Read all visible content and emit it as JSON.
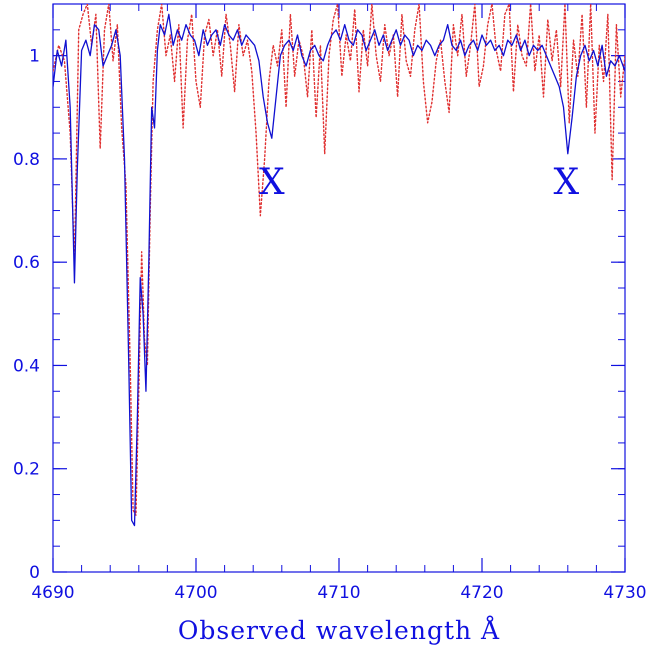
{
  "chart_data": {
    "type": "line",
    "title": "",
    "xlabel": "Observed wavelength Å",
    "ylabel": "",
    "xlim": [
      4690,
      4730
    ],
    "ylim": [
      0,
      1.1
    ],
    "x_ticks": [
      {
        "value": 4690,
        "label": "4690"
      },
      {
        "value": 4700,
        "label": "4700"
      },
      {
        "value": 4710,
        "label": "4710"
      },
      {
        "value": 4720,
        "label": "4720"
      },
      {
        "value": 4730,
        "label": "4730"
      }
    ],
    "y_ticks": [
      {
        "value": 0,
        "label": "0"
      },
      {
        "value": 0.2,
        "label": "0.2"
      },
      {
        "value": 0.4,
        "label": "0.4"
      },
      {
        "value": 0.6,
        "label": "0.6"
      },
      {
        "value": 0.8,
        "label": "0.8"
      },
      {
        "value": 1,
        "label": "1"
      }
    ],
    "grid": false,
    "annotations": [
      {
        "text": "X",
        "x": 4705.3,
        "y": 0.755
      },
      {
        "text": "X",
        "x": 4725.9,
        "y": 0.755
      }
    ],
    "series": [
      {
        "style": "solid",
        "color": "#1010d0",
        "x": [
          4690.0,
          4690.3,
          4690.6,
          4690.9,
          4691.2,
          4691.5,
          4691.7,
          4692.0,
          4692.3,
          4692.6,
          4692.9,
          4693.2,
          4693.5,
          4693.8,
          4694.1,
          4694.4,
          4694.7,
          4695.0,
          4695.3,
          4695.5,
          4695.7,
          4695.9,
          4696.1,
          4696.3,
          4696.5,
          4696.7,
          4696.9,
          4697.1,
          4697.3,
          4697.5,
          4697.8,
          4698.1,
          4698.4,
          4698.7,
          4699.0,
          4699.3,
          4699.6,
          4699.9,
          4700.2,
          4700.5,
          4700.8,
          4701.1,
          4701.4,
          4701.7,
          4702.0,
          4702.3,
          4702.6,
          4702.9,
          4703.2,
          4703.5,
          4703.8,
          4704.1,
          4704.4,
          4704.7,
          4705.0,
          4705.3,
          4705.6,
          4705.9,
          4706.2,
          4706.5,
          4706.8,
          4707.1,
          4707.4,
          4707.7,
          4708.0,
          4708.3,
          4708.6,
          4708.9,
          4709.2,
          4709.5,
          4709.8,
          4710.1,
          4710.4,
          4710.7,
          4711.0,
          4711.3,
          4711.6,
          4711.9,
          4712.2,
          4712.5,
          4712.8,
          4713.1,
          4713.4,
          4713.7,
          4714.0,
          4714.3,
          4714.6,
          4714.9,
          4715.2,
          4715.5,
          4715.8,
          4716.1,
          4716.4,
          4716.7,
          4717.0,
          4717.3,
          4717.6,
          4717.9,
          4718.2,
          4718.5,
          4718.8,
          4719.1,
          4719.4,
          4719.7,
          4720.0,
          4720.3,
          4720.6,
          4720.9,
          4721.2,
          4721.5,
          4721.8,
          4722.1,
          4722.4,
          4722.7,
          4723.0,
          4723.3,
          4723.6,
          4723.9,
          4724.2,
          4724.5,
          4724.8,
          4725.1,
          4725.4,
          4725.7,
          4726.0,
          4726.3,
          4726.6,
          4726.9,
          4727.2,
          4727.5,
          4727.8,
          4728.1,
          4728.4,
          4728.7,
          4729.0,
          4729.3,
          4729.6,
          4730.0
        ],
        "y": [
          0.94,
          1.01,
          0.98,
          1.03,
          0.9,
          0.56,
          0.78,
          1.01,
          1.03,
          1.0,
          1.06,
          1.05,
          0.98,
          1.0,
          1.02,
          1.05,
          1.0,
          0.8,
          0.4,
          0.1,
          0.09,
          0.3,
          0.57,
          0.5,
          0.35,
          0.6,
          0.9,
          0.86,
          1.01,
          1.06,
          1.04,
          1.08,
          1.02,
          1.05,
          1.03,
          1.06,
          1.04,
          1.03,
          1.0,
          1.05,
          1.02,
          1.04,
          1.05,
          1.02,
          1.06,
          1.04,
          1.03,
          1.05,
          1.02,
          1.04,
          1.03,
          1.02,
          0.99,
          0.92,
          0.87,
          0.84,
          0.92,
          1.0,
          1.02,
          1.03,
          1.01,
          1.04,
          1.0,
          0.98,
          1.01,
          1.02,
          1.0,
          0.99,
          1.02,
          1.04,
          1.05,
          1.03,
          1.06,
          1.03,
          1.02,
          1.05,
          1.04,
          1.01,
          1.03,
          1.05,
          1.02,
          1.04,
          1.01,
          1.03,
          1.05,
          1.02,
          1.04,
          1.03,
          1.0,
          1.02,
          1.01,
          1.03,
          1.02,
          1.0,
          1.02,
          1.03,
          1.06,
          1.02,
          1.01,
          1.03,
          1.0,
          1.02,
          1.03,
          1.01,
          1.04,
          1.02,
          1.03,
          1.01,
          1.02,
          1.0,
          1.03,
          1.02,
          1.04,
          1.01,
          1.03,
          1.0,
          1.02,
          1.01,
          1.02,
          1.0,
          0.98,
          0.96,
          0.94,
          0.9,
          0.81,
          0.88,
          0.96,
          1.0,
          1.02,
          0.99,
          1.01,
          0.98,
          1.02,
          0.96,
          0.99,
          0.98,
          1.0,
          0.97
        ]
      },
      {
        "style": "dotted",
        "color": "#e03030",
        "x": [
          4690.0,
          4690.4,
          4690.8,
          4691.2,
          4691.5,
          4691.8,
          4692.1,
          4692.4,
          4692.7,
          4693.0,
          4693.3,
          4693.6,
          4693.9,
          4694.2,
          4694.5,
          4694.8,
          4695.1,
          4695.4,
          4695.6,
          4695.8,
          4696.0,
          4696.2,
          4696.4,
          4696.6,
          4696.8,
          4697.0,
          4697.3,
          4697.6,
          4697.9,
          4698.2,
          4698.5,
          4698.8,
          4699.1,
          4699.4,
          4699.7,
          4700.0,
          4700.3,
          4700.6,
          4700.9,
          4701.2,
          4701.5,
          4701.8,
          4702.1,
          4702.4,
          4702.7,
          4703.0,
          4703.3,
          4703.6,
          4703.9,
          4704.2,
          4704.5,
          4704.8,
          4705.1,
          4705.4,
          4705.7,
          4706.0,
          4706.3,
          4706.6,
          4706.9,
          4707.2,
          4707.5,
          4707.8,
          4708.1,
          4708.4,
          4708.7,
          4709.0,
          4709.3,
          4709.6,
          4709.9,
          4710.2,
          4710.5,
          4710.8,
          4711.1,
          4711.4,
          4711.7,
          4712.0,
          4712.3,
          4712.6,
          4712.9,
          4713.2,
          4713.5,
          4713.8,
          4714.1,
          4714.4,
          4714.7,
          4715.0,
          4715.3,
          4715.6,
          4715.9,
          4716.2,
          4716.5,
          4716.8,
          4717.1,
          4717.4,
          4717.7,
          4718.0,
          4718.3,
          4718.6,
          4718.9,
          4719.2,
          4719.5,
          4719.8,
          4720.1,
          4720.4,
          4720.7,
          4721.0,
          4721.3,
          4721.6,
          4721.9,
          4722.2,
          4722.5,
          4722.8,
          4723.1,
          4723.4,
          4723.7,
          4724.0,
          4724.3,
          4724.6,
          4724.9,
          4725.2,
          4725.5,
          4725.8,
          4726.1,
          4726.4,
          4726.7,
          4727.0,
          4727.3,
          4727.6,
          4727.9,
          4728.2,
          4728.5,
          4728.8,
          4729.1,
          4729.4,
          4729.7,
          4730.0
        ],
        "y": [
          0.97,
          1.02,
          0.99,
          0.85,
          0.6,
          1.05,
          1.08,
          1.1,
          1.02,
          1.08,
          0.82,
          1.05,
          1.1,
          0.99,
          1.06,
          0.86,
          0.75,
          0.4,
          0.12,
          0.11,
          0.35,
          0.62,
          0.45,
          0.4,
          0.7,
          0.95,
          1.05,
          1.1,
          1.0,
          1.04,
          0.95,
          1.06,
          0.86,
          1.03,
          1.08,
          0.95,
          0.9,
          1.04,
          1.07,
          1.0,
          1.05,
          0.96,
          1.08,
          1.02,
          0.93,
          1.06,
          1.0,
          1.03,
          0.97,
          0.85,
          0.69,
          0.8,
          0.95,
          1.02,
          0.98,
          1.05,
          0.9,
          1.08,
          0.96,
          1.03,
          1.0,
          0.92,
          1.05,
          0.88,
          1.02,
          0.81,
          1.0,
          1.07,
          1.1,
          0.96,
          1.04,
          0.99,
          1.09,
          0.93,
          1.05,
          0.98,
          1.1,
          1.0,
          0.95,
          1.06,
          1.0,
          1.04,
          0.92,
          1.08,
          0.99,
          0.96,
          1.05,
          1.1,
          0.95,
          0.87,
          0.91,
          0.99,
          1.03,
          0.95,
          0.89,
          1.06,
          1.0,
          1.08,
          0.96,
          1.02,
          1.1,
          0.94,
          0.98,
          1.06,
          1.1,
          1.01,
          0.97,
          1.08,
          1.1,
          0.93,
          1.06,
          1.0,
          0.98,
          1.1,
          0.97,
          1.04,
          0.92,
          1.07,
          0.99,
          1.05,
          0.94,
          1.1,
          0.87,
          1.03,
          0.96,
          1.08,
          0.9,
          1.1,
          0.85,
          1.02,
          0.95,
          1.08,
          0.76,
          1.06,
          0.92,
          1.0
        ]
      }
    ]
  }
}
